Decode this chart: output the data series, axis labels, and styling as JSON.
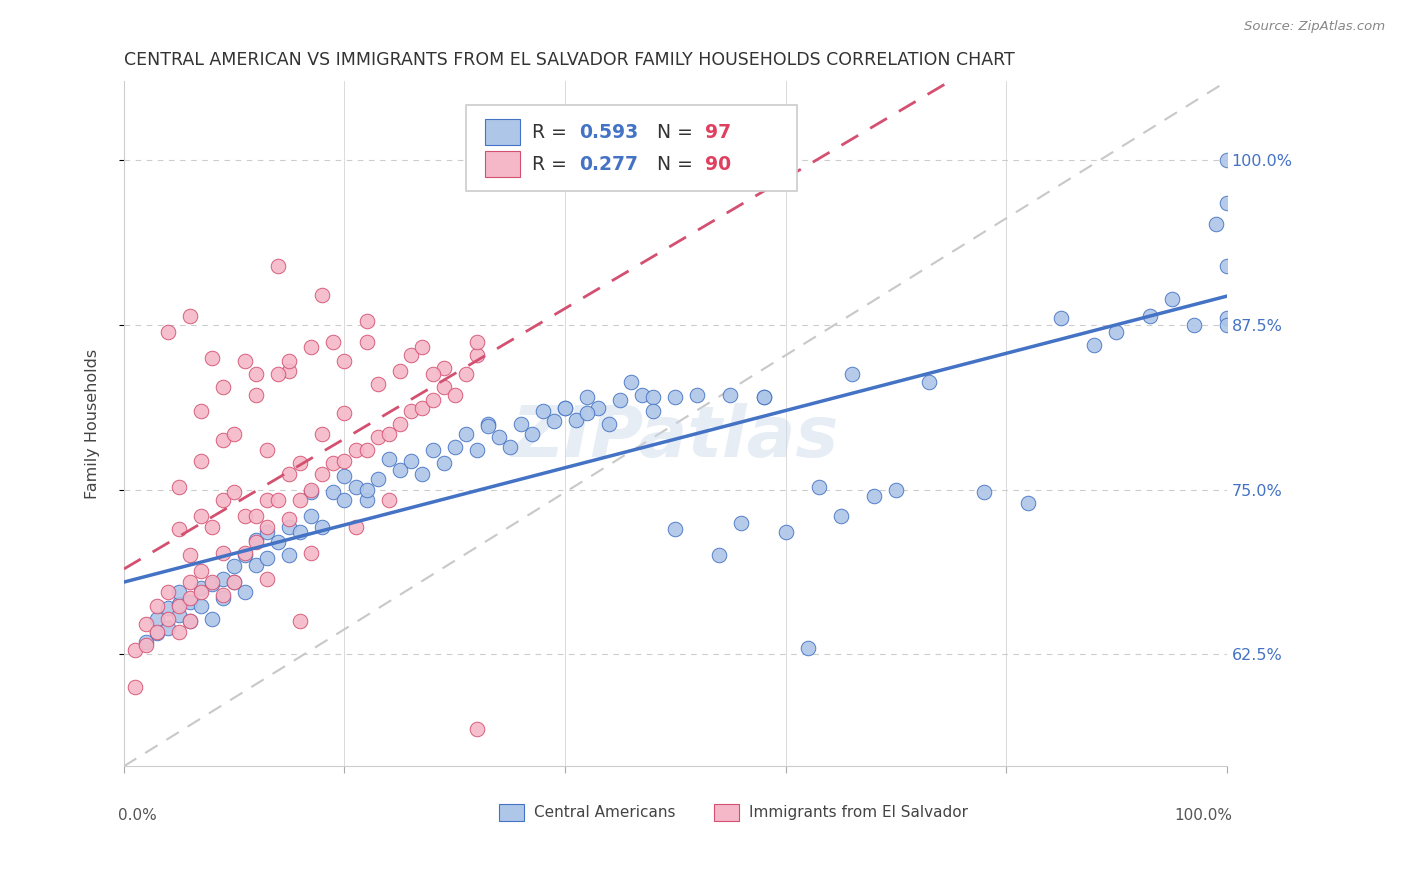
{
  "title": "CENTRAL AMERICAN VS IMMIGRANTS FROM EL SALVADOR FAMILY HOUSEHOLDS CORRELATION CHART",
  "source": "Source: ZipAtlas.com",
  "ylabel": "Family Households",
  "ytick_values": [
    0.625,
    0.75,
    0.875,
    1.0
  ],
  "xlim": [
    0.0,
    1.0
  ],
  "ylim": [
    0.54,
    1.06
  ],
  "blue_R": "0.593",
  "blue_N": "97",
  "pink_R": "0.277",
  "pink_N": "90",
  "blue_fill_color": "#aec6e8",
  "pink_fill_color": "#f4b8c8",
  "blue_edge_color": "#4472c4",
  "pink_edge_color": "#d45070",
  "diag_color": "#c8c8c8",
  "grid_color": "#cccccc",
  "background": "#ffffff",
  "right_axis_color": "#4472c4",
  "watermark": "ZIPatlas",
  "blue_x": [
    0.02,
    0.03,
    0.03,
    0.04,
    0.04,
    0.05,
    0.05,
    0.05,
    0.06,
    0.06,
    0.07,
    0.07,
    0.08,
    0.08,
    0.09,
    0.09,
    0.1,
    0.1,
    0.11,
    0.11,
    0.12,
    0.12,
    0.13,
    0.13,
    0.14,
    0.15,
    0.15,
    0.16,
    0.17,
    0.17,
    0.18,
    0.19,
    0.2,
    0.2,
    0.21,
    0.22,
    0.23,
    0.24,
    0.25,
    0.26,
    0.27,
    0.28,
    0.29,
    0.3,
    0.31,
    0.32,
    0.33,
    0.34,
    0.35,
    0.36,
    0.37,
    0.38,
    0.39,
    0.4,
    0.41,
    0.42,
    0.43,
    0.44,
    0.45,
    0.46,
    0.47,
    0.48,
    0.5,
    0.52,
    0.54,
    0.56,
    0.58,
    0.6,
    0.63,
    0.65,
    0.68,
    0.7,
    0.73,
    0.78,
    0.82,
    0.85,
    0.88,
    0.9,
    0.93,
    0.95,
    0.97,
    0.99,
    1.0,
    1.0,
    1.0,
    1.0,
    1.0,
    0.22,
    0.33,
    0.42,
    0.5,
    0.58,
    0.66,
    0.4,
    0.48,
    0.55,
    0.62
  ],
  "blue_y": [
    0.634,
    0.641,
    0.652,
    0.66,
    0.645,
    0.655,
    0.663,
    0.672,
    0.65,
    0.665,
    0.662,
    0.675,
    0.652,
    0.678,
    0.668,
    0.682,
    0.68,
    0.692,
    0.672,
    0.7,
    0.693,
    0.712,
    0.698,
    0.718,
    0.71,
    0.7,
    0.722,
    0.718,
    0.73,
    0.748,
    0.722,
    0.748,
    0.742,
    0.76,
    0.752,
    0.742,
    0.758,
    0.773,
    0.765,
    0.772,
    0.762,
    0.78,
    0.77,
    0.782,
    0.792,
    0.78,
    0.8,
    0.79,
    0.782,
    0.8,
    0.792,
    0.81,
    0.802,
    0.812,
    0.803,
    0.82,
    0.812,
    0.8,
    0.818,
    0.832,
    0.822,
    0.82,
    0.82,
    0.822,
    0.7,
    0.725,
    0.82,
    0.718,
    0.752,
    0.73,
    0.745,
    0.75,
    0.832,
    0.748,
    0.74,
    0.88,
    0.86,
    0.87,
    0.882,
    0.895,
    0.875,
    0.952,
    0.968,
    1.0,
    0.92,
    0.88,
    0.875,
    0.75,
    0.798,
    0.808,
    0.72,
    0.82,
    0.838,
    0.812,
    0.81,
    0.822,
    0.63
  ],
  "pink_x": [
    0.01,
    0.01,
    0.02,
    0.02,
    0.03,
    0.03,
    0.04,
    0.04,
    0.05,
    0.05,
    0.05,
    0.06,
    0.06,
    0.06,
    0.07,
    0.07,
    0.07,
    0.08,
    0.08,
    0.09,
    0.09,
    0.1,
    0.1,
    0.11,
    0.11,
    0.12,
    0.12,
    0.13,
    0.13,
    0.14,
    0.15,
    0.15,
    0.16,
    0.16,
    0.17,
    0.18,
    0.19,
    0.2,
    0.21,
    0.22,
    0.23,
    0.24,
    0.25,
    0.26,
    0.27,
    0.28,
    0.29,
    0.3,
    0.31,
    0.32,
    0.09,
    0.12,
    0.15,
    0.18,
    0.2,
    0.23,
    0.26,
    0.29,
    0.32,
    0.12,
    0.15,
    0.19,
    0.22,
    0.07,
    0.09,
    0.11,
    0.14,
    0.17,
    0.25,
    0.08,
    0.06,
    0.04,
    0.05,
    0.07,
    0.1,
    0.13,
    0.2,
    0.22,
    0.28,
    0.06,
    0.09,
    0.13,
    0.17,
    0.21,
    0.24,
    0.14,
    0.16,
    0.18,
    0.27,
    0.32
  ],
  "pink_y": [
    0.6,
    0.628,
    0.632,
    0.648,
    0.642,
    0.662,
    0.652,
    0.672,
    0.642,
    0.662,
    0.72,
    0.668,
    0.68,
    0.7,
    0.672,
    0.688,
    0.73,
    0.68,
    0.722,
    0.702,
    0.742,
    0.68,
    0.748,
    0.702,
    0.73,
    0.71,
    0.73,
    0.722,
    0.742,
    0.742,
    0.728,
    0.762,
    0.742,
    0.77,
    0.75,
    0.762,
    0.77,
    0.772,
    0.78,
    0.78,
    0.79,
    0.792,
    0.8,
    0.81,
    0.812,
    0.818,
    0.828,
    0.822,
    0.838,
    0.852,
    0.788,
    0.822,
    0.84,
    0.792,
    0.848,
    0.83,
    0.852,
    0.842,
    0.862,
    0.838,
    0.848,
    0.862,
    0.878,
    0.81,
    0.828,
    0.848,
    0.838,
    0.858,
    0.84,
    0.85,
    0.882,
    0.87,
    0.752,
    0.772,
    0.792,
    0.78,
    0.808,
    0.862,
    0.838,
    0.65,
    0.67,
    0.682,
    0.702,
    0.722,
    0.742,
    0.92,
    0.65,
    0.898,
    0.858,
    0.568
  ]
}
